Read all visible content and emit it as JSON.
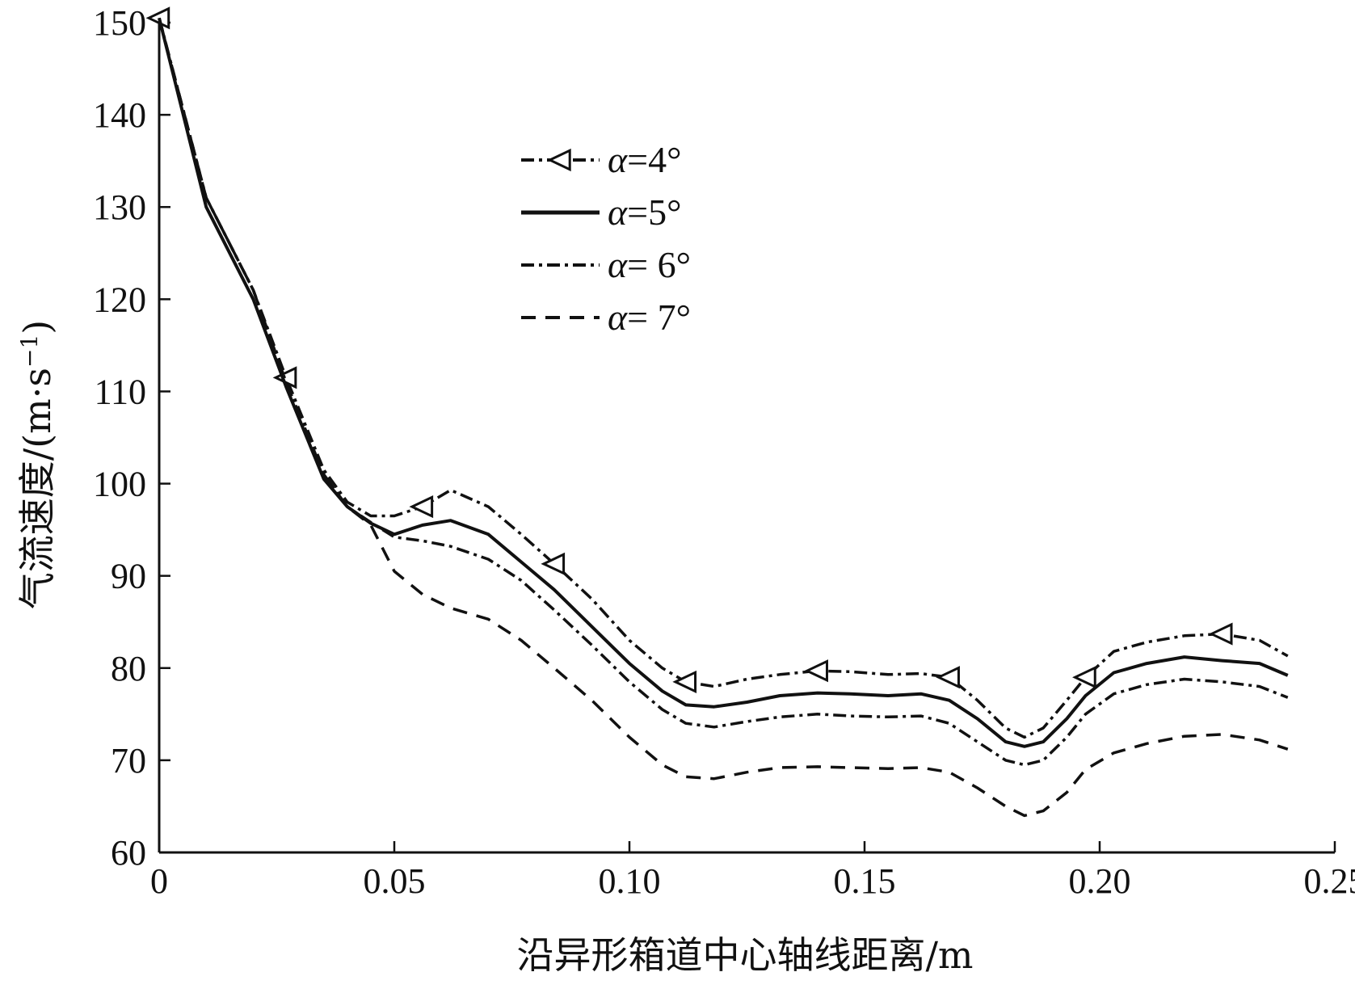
{
  "chart_data": {
    "type": "line",
    "title": "",
    "xlabel": "沿异形箱道中心轴线距离/m",
    "ylabel_main": "气流速度/(m·s",
    "ylabel_sup": "−1",
    "ylabel_close": ")",
    "xlim": [
      0,
      0.25
    ],
    "ylim": [
      60,
      150
    ],
    "x_ticks": [
      0,
      0.05,
      0.1,
      0.15,
      0.2,
      0.25
    ],
    "x_tick_labels": [
      "0",
      "0.05",
      "0.10",
      "0.15",
      "0.20",
      "0.25"
    ],
    "y_ticks": [
      60,
      70,
      80,
      90,
      100,
      110,
      120,
      130,
      140,
      150
    ],
    "y_tick_labels": [
      "60",
      "70",
      "80",
      "90",
      "100",
      "110",
      "120",
      "130",
      "140",
      "150"
    ],
    "grid": false,
    "legend_position": "top-center",
    "series": [
      {
        "name": "α=4°",
        "alpha": "α",
        "rest": "=4°",
        "style": "dash-dot",
        "marker": "left-triangle",
        "color": "#111111",
        "x": [
          0,
          0.01,
          0.02,
          0.027,
          0.035,
          0.04,
          0.045,
          0.05,
          0.056,
          0.062,
          0.07,
          0.077,
          0.084,
          0.092,
          0.1,
          0.107,
          0.112,
          0.118,
          0.125,
          0.132,
          0.14,
          0.147,
          0.155,
          0.162,
          0.168,
          0.174,
          0.18,
          0.184,
          0.188,
          0.193,
          0.197,
          0.203,
          0.21,
          0.218,
          0.226,
          0.234,
          0.24
        ],
        "y": [
          150.5,
          131,
          121,
          111.5,
          101.5,
          98,
          96.5,
          96.5,
          97.5,
          99.3,
          97.5,
          94.5,
          91.3,
          87.5,
          83,
          80,
          78.5,
          78,
          78.8,
          79.3,
          79.7,
          79.6,
          79.3,
          79.4,
          79,
          76.5,
          73.5,
          72.5,
          73.5,
          76.5,
          79,
          81.8,
          82.8,
          83.5,
          83.7,
          83,
          81.3
        ],
        "marker_indices": [
          0,
          3,
          8,
          12,
          16,
          20,
          24,
          30,
          34
        ]
      },
      {
        "name": "α=5°",
        "alpha": "α",
        "rest": "=5°",
        "style": "solid",
        "marker": "",
        "color": "#111111",
        "x": [
          0,
          0.01,
          0.02,
          0.027,
          0.035,
          0.04,
          0.045,
          0.05,
          0.056,
          0.062,
          0.07,
          0.077,
          0.084,
          0.092,
          0.1,
          0.107,
          0.112,
          0.118,
          0.125,
          0.132,
          0.14,
          0.147,
          0.155,
          0.162,
          0.168,
          0.174,
          0.18,
          0.184,
          0.188,
          0.193,
          0.197,
          0.203,
          0.21,
          0.218,
          0.226,
          0.234,
          0.24
        ],
        "y": [
          150.5,
          130,
          120,
          110.5,
          100.5,
          97.5,
          95.7,
          94.5,
          95.5,
          96,
          94.5,
          91.5,
          88.5,
          84.5,
          80.5,
          77.5,
          76,
          75.8,
          76.3,
          77,
          77.3,
          77.2,
          77,
          77.2,
          76.5,
          74.5,
          72,
          71.5,
          72,
          74.5,
          77,
          79.5,
          80.5,
          81.2,
          80.8,
          80.5,
          79.2
        ],
        "marker_indices": []
      },
      {
        "name": "α= 6°",
        "alpha": "α",
        "rest": "= 6°",
        "style": "dash-dot",
        "marker": "",
        "color": "#111111",
        "x": [
          0,
          0.01,
          0.02,
          0.027,
          0.035,
          0.04,
          0.045,
          0.05,
          0.056,
          0.062,
          0.07,
          0.077,
          0.084,
          0.092,
          0.1,
          0.107,
          0.112,
          0.118,
          0.125,
          0.132,
          0.14,
          0.147,
          0.155,
          0.162,
          0.168,
          0.174,
          0.18,
          0.184,
          0.188,
          0.193,
          0.197,
          0.203,
          0.21,
          0.218,
          0.226,
          0.234,
          0.24
        ],
        "y": [
          150.5,
          131,
          121,
          111,
          101,
          97.5,
          95.8,
          94.2,
          93.8,
          93.2,
          91.8,
          89.5,
          86.3,
          82.5,
          78.5,
          75.5,
          74,
          73.6,
          74.2,
          74.7,
          75,
          74.8,
          74.7,
          74.8,
          74,
          72,
          70,
          69.5,
          70,
          72.5,
          75,
          77.2,
          78.2,
          78.8,
          78.5,
          78,
          76.8
        ],
        "marker_indices": []
      },
      {
        "name": "α= 7°",
        "alpha": "α",
        "rest": "= 7°",
        "style": "dashed",
        "marker": "",
        "color": "#111111",
        "x": [
          0,
          0.01,
          0.02,
          0.027,
          0.035,
          0.04,
          0.045,
          0.05,
          0.056,
          0.062,
          0.07,
          0.077,
          0.084,
          0.092,
          0.1,
          0.107,
          0.112,
          0.118,
          0.125,
          0.132,
          0.14,
          0.147,
          0.155,
          0.162,
          0.168,
          0.174,
          0.18,
          0.184,
          0.188,
          0.193,
          0.197,
          0.203,
          0.21,
          0.218,
          0.226,
          0.234,
          0.24
        ],
        "y": [
          150.5,
          131,
          121,
          111,
          101,
          97.5,
          95.5,
          90.5,
          88,
          86.5,
          85.3,
          83,
          80,
          76.5,
          72.5,
          69.5,
          68.2,
          68,
          68.7,
          69.2,
          69.3,
          69.2,
          69.1,
          69.2,
          68.7,
          67,
          65,
          64,
          64.5,
          66.5,
          69,
          70.8,
          71.8,
          72.6,
          72.8,
          72.2,
          71.2
        ],
        "marker_indices": []
      }
    ]
  }
}
